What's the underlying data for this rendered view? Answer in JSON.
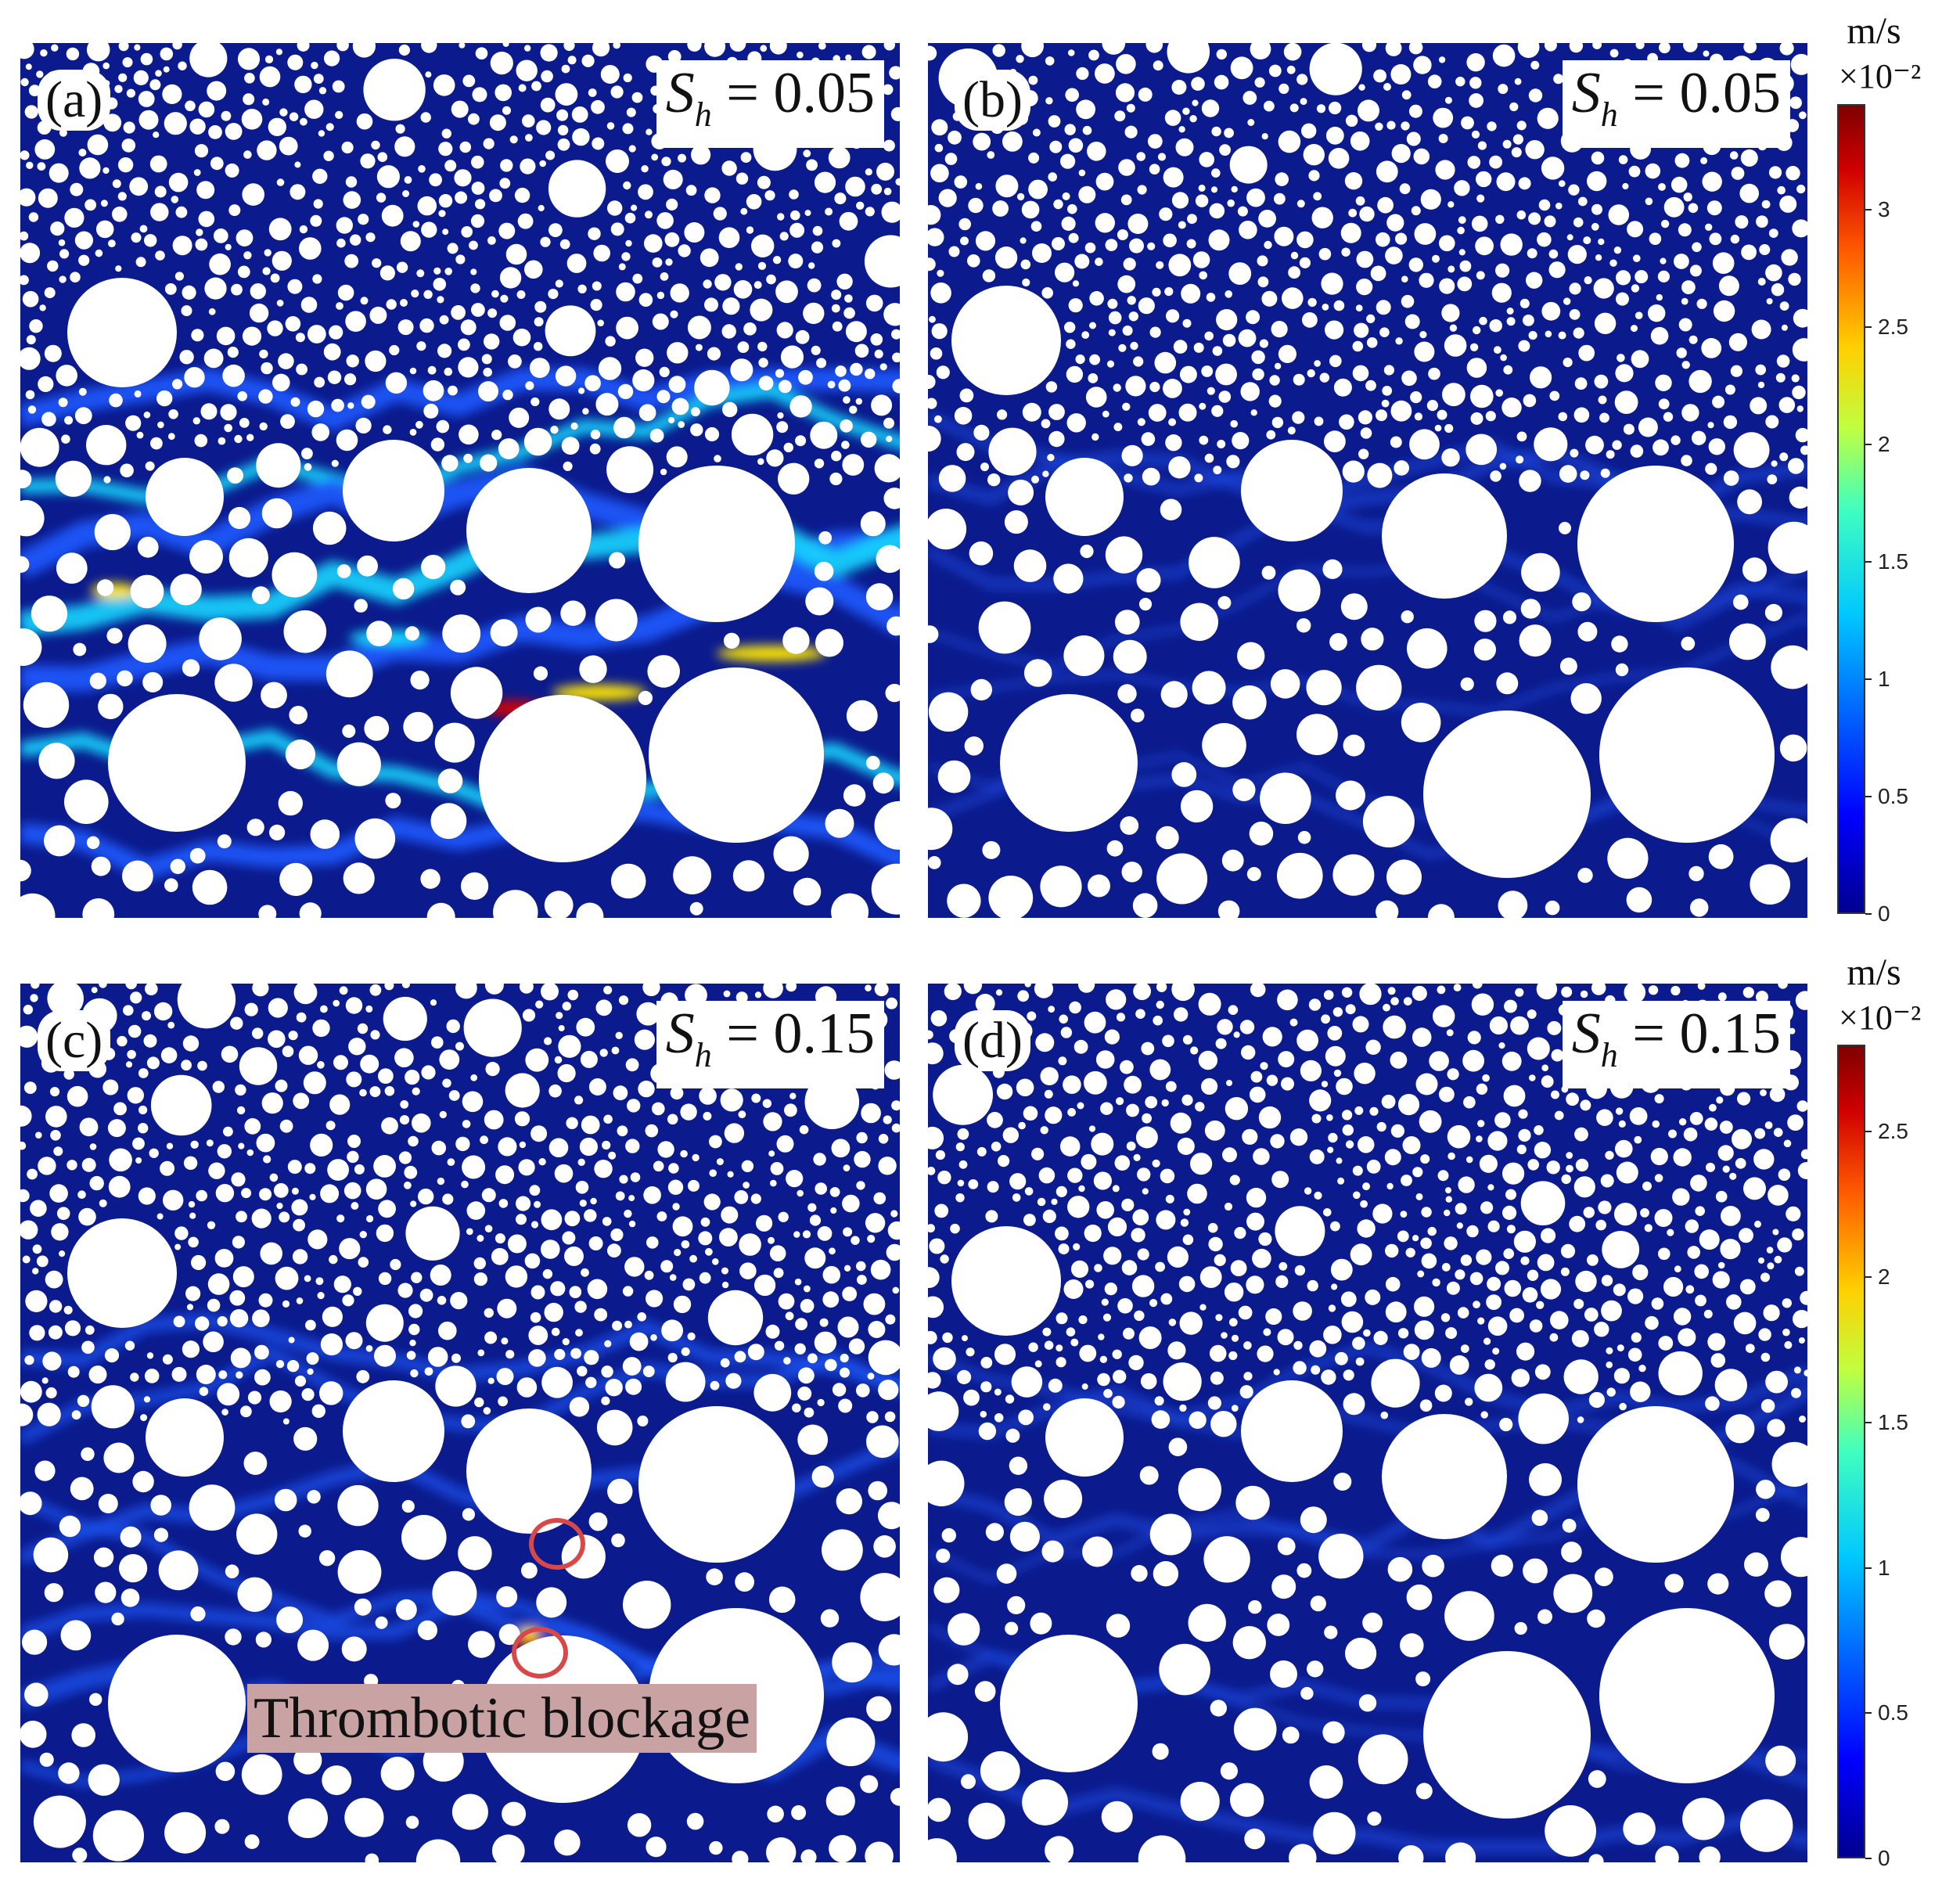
{
  "panels": [
    {
      "id": "a",
      "label": "(a)",
      "sh_symbol": "S",
      "sh_sub": "h",
      "sh_value": "= 0.05",
      "intensity": "high"
    },
    {
      "id": "b",
      "label": "(b)",
      "sh_symbol": "S",
      "sh_sub": "h",
      "sh_value": "= 0.05",
      "intensity": "low"
    },
    {
      "id": "c",
      "label": "(c)",
      "sh_symbol": "S",
      "sh_sub": "h",
      "sh_value": "= 0.15",
      "intensity": "medium"
    },
    {
      "id": "d",
      "label": "(d)",
      "sh_symbol": "S",
      "sh_sub": "h",
      "sh_value": "= 0.15",
      "intensity": "low"
    }
  ],
  "colorbars": [
    {
      "unit": "m/s",
      "multiplier": "×10⁻²",
      "ticks": [
        "3",
        "2.5",
        "2",
        "1.5",
        "1",
        "0.5",
        "0"
      ],
      "tick_values": [
        3,
        2.5,
        2,
        1.5,
        1,
        0.5,
        0
      ],
      "max": 3.45
    },
    {
      "unit": "m/s",
      "multiplier": "×10⁻²",
      "ticks": [
        "2.5",
        "2",
        "1.5",
        "1",
        "0.5",
        "0"
      ],
      "tick_values": [
        2.5,
        2,
        1.5,
        1,
        0.5,
        0
      ],
      "max": 2.8
    }
  ],
  "annotation": {
    "text": "Thrombotic blockage"
  },
  "colors": {
    "fluid": "#0b1a8c",
    "flow_low": "#1f5aff",
    "flow_mid": "#18d6ff",
    "flow_high": "#ffe600",
    "flow_peak": "#d40000",
    "ring": "#d94848",
    "annotation_bg": "#c9a3a3"
  }
}
